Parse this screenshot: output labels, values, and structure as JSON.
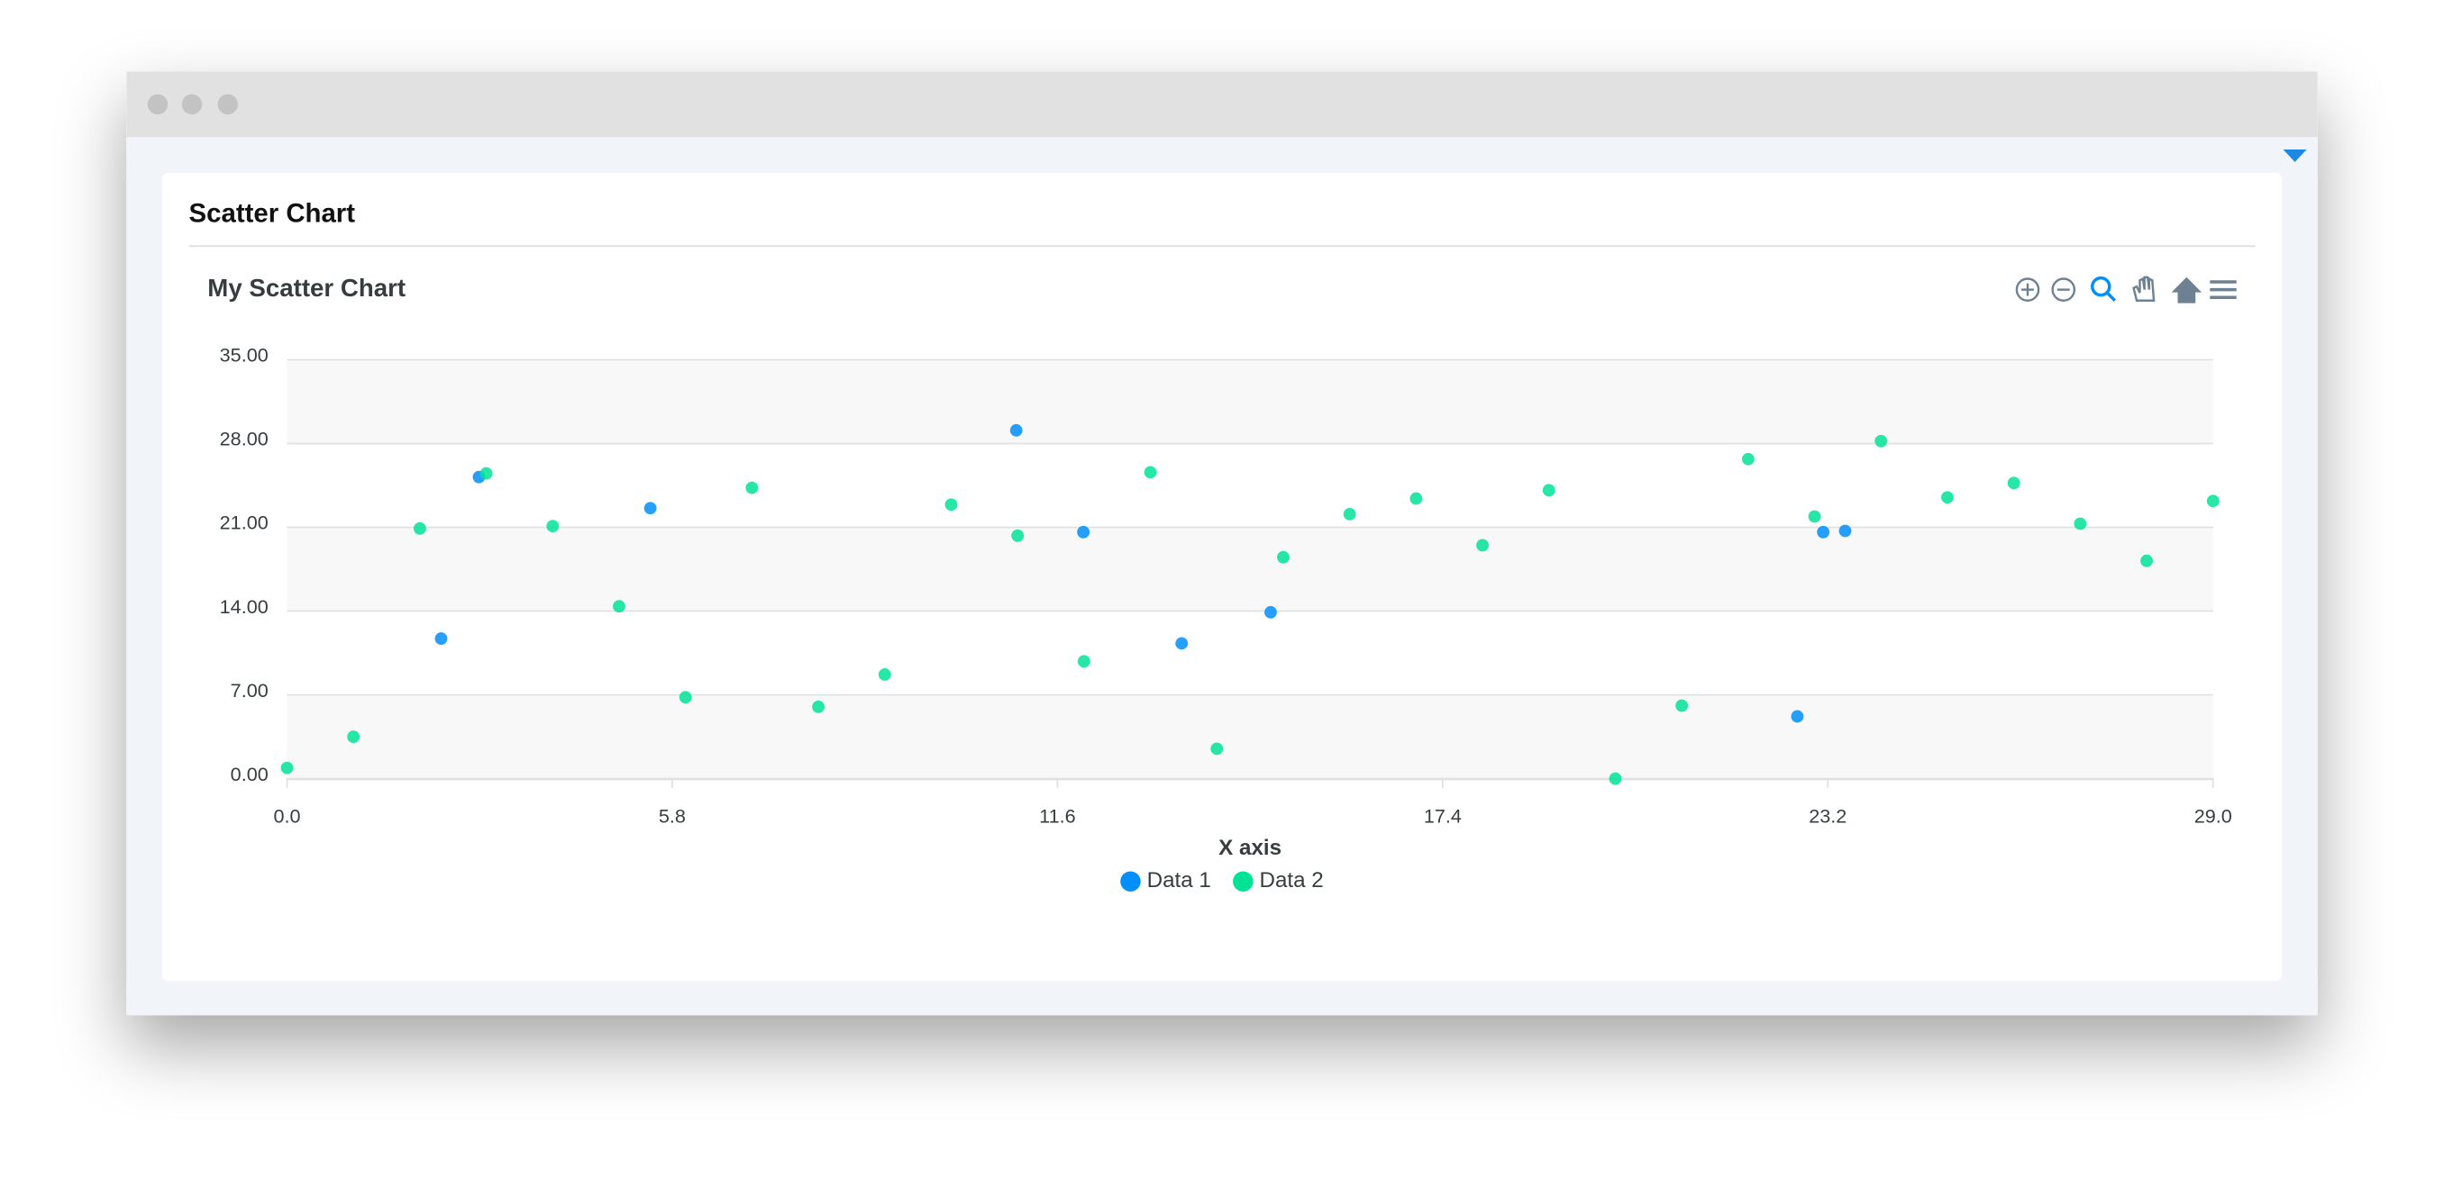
{
  "card_title": "Scatter Chart",
  "chart_data": {
    "type": "scatter",
    "title": "My Scatter Chart",
    "x_label": "X axis",
    "xlim": [
      0,
      29
    ],
    "ylim": [
      0,
      35
    ],
    "xticks": [
      {
        "value": 0,
        "label": "0.0"
      },
      5.8,
      11.6,
      17.4,
      23.2,
      {
        "value": 29,
        "label": "29.0"
      }
    ],
    "yticks": [
      {
        "value": 0,
        "label": "0.00"
      },
      {
        "value": 7,
        "label": "7.00"
      },
      {
        "value": 14,
        "label": "14.00"
      },
      {
        "value": 21,
        "label": "21.00"
      },
      {
        "value": 28,
        "label": "28.00"
      },
      {
        "value": 35,
        "label": "35.00"
      }
    ],
    "grid": true,
    "legend": "bottom",
    "series": [
      {
        "name": "Data 1",
        "color": "#008ffb",
        "x": [
          2.89,
          2.32,
          5.47,
          10.98,
          11.99,
          13.47,
          14.81,
          22.74,
          23.13,
          23.46
        ],
        "values": [
          25.2,
          11.7,
          22.6,
          29.1,
          20.6,
          11.3,
          13.9,
          5.2,
          20.6,
          20.7
        ]
      },
      {
        "name": "Data 2",
        "color": "#00e396",
        "x": [
          0,
          1,
          2,
          3,
          4,
          5,
          6,
          7,
          8,
          9,
          10,
          11,
          12,
          13,
          14,
          15,
          16,
          17,
          18,
          19,
          20,
          21,
          22,
          23,
          24,
          25,
          26,
          27,
          28,
          29
        ],
        "values": [
          0.9,
          3.5,
          20.9,
          25.5,
          21.1,
          14.4,
          6.8,
          24.3,
          6.0,
          8.7,
          22.9,
          20.3,
          9.8,
          25.6,
          2.5,
          18.5,
          22.1,
          23.4,
          19.5,
          24.1,
          0.0,
          6.1,
          26.7,
          21.9,
          28.2,
          23.5,
          24.7,
          21.3,
          18.2,
          23.2
        ]
      }
    ]
  }
}
